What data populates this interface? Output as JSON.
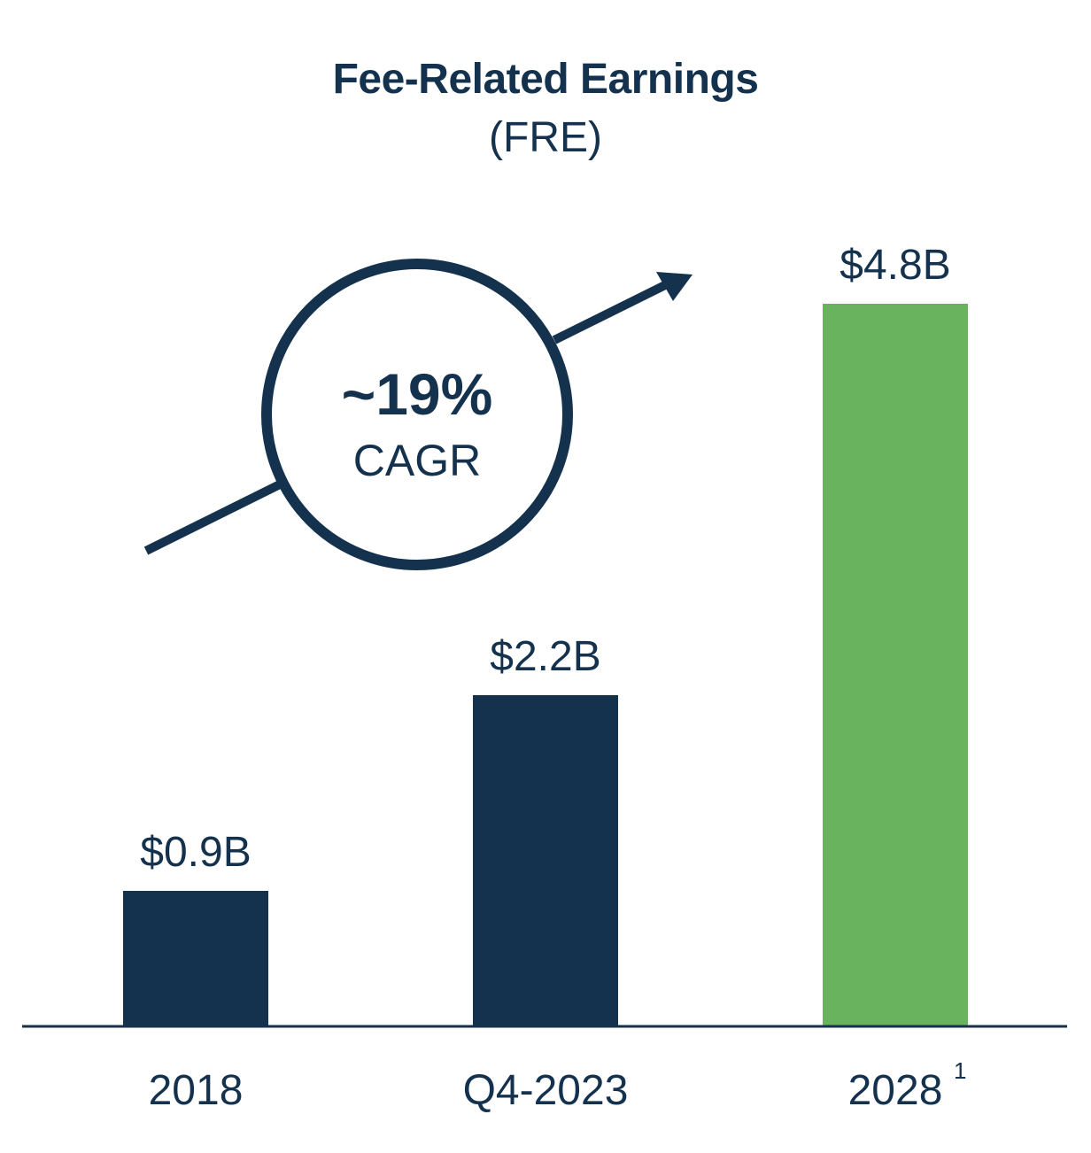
{
  "chart_data": {
    "type": "bar",
    "title": "Fee-Related Earnings",
    "subtitle": "(FRE)",
    "categories": [
      "2018",
      "Q4-2023",
      "2028"
    ],
    "category_footnotes": [
      "",
      "",
      "1"
    ],
    "values": [
      0.9,
      2.2,
      4.8
    ],
    "data_labels": [
      "$0.9B",
      "$2.2B",
      "$4.8B"
    ],
    "unit": "$B",
    "ylim": [
      0,
      5.2
    ],
    "grid": false,
    "xlabel": "",
    "ylabel": "",
    "bar_colors": [
      "#14324e",
      "#14324e",
      "#6ab35e"
    ],
    "annotation": {
      "value": "~19%",
      "label": "CAGR"
    }
  },
  "colors": {
    "navy": "#14324e",
    "green": "#6ab35e"
  }
}
